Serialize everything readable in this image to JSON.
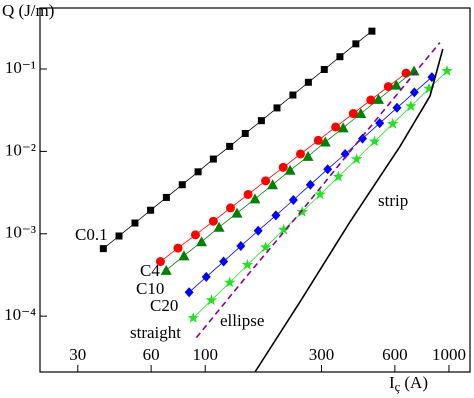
{
  "chart_data": {
    "type": "line",
    "log_x": true,
    "log_y": true,
    "y_label": "Q (J/m)",
    "x_label": {
      "main": "I",
      "sub": "ç",
      "unit": "(A)"
    },
    "xlim": [
      21,
      1220
    ],
    "ylim": [
      2.1e-05,
      0.55
    ],
    "xticks": [
      30,
      60,
      100,
      300,
      600,
      1000
    ],
    "yticks": [
      {
        "value": 0.0001,
        "label": "10⁻⁴"
      },
      {
        "value": 0.001,
        "label": "10⁻³"
      },
      {
        "value": 0.01,
        "label": "10⁻²"
      },
      {
        "value": 0.1,
        "label": "10⁻¹"
      }
    ],
    "series": [
      {
        "name": "C0.1",
        "color": "#000000",
        "marker": "square",
        "line": "solid",
        "x": [
          38.2,
          44.3,
          51.5,
          59.7,
          69.3,
          80.5,
          93.5,
          108,
          126,
          146,
          170,
          197,
          229,
          265,
          308,
          357,
          415,
          483
        ],
        "values": [
          0.00066,
          0.00094,
          0.00135,
          0.00193,
          0.00276,
          0.00394,
          0.00565,
          0.00807,
          0.0115,
          0.0165,
          0.0236,
          0.0337,
          0.0483,
          0.069,
          0.0986,
          0.141,
          0.202,
          0.288
        ]
      },
      {
        "name": "C4",
        "color": "#ff0000",
        "marker": "circle",
        "line": "solid",
        "x": [
          65.5,
          77.3,
          91.2,
          108,
          127,
          150,
          177,
          209,
          246,
          291,
          343,
          405,
          478,
          564,
          667
        ],
        "values": [
          0.00046,
          0.00067,
          0.00097,
          0.00142,
          0.00206,
          0.003,
          0.00439,
          0.0064,
          0.0093,
          0.0136,
          0.0198,
          0.0288,
          0.042,
          0.0612,
          0.0891
        ]
      },
      {
        "name": "C10",
        "color": "#008000",
        "marker": "triangle",
        "line": "solid",
        "x": [
          69.2,
          81.8,
          96.6,
          114,
          135,
          160,
          189,
          223,
          264,
          311,
          368,
          435,
          514,
          608,
          719
        ],
        "values": [
          0.00036,
          0.00054,
          0.0008,
          0.0012,
          0.00178,
          0.00265,
          0.00394,
          0.0059,
          0.0087,
          0.013,
          0.0193,
          0.0288,
          0.0428,
          0.0637,
          0.0946
        ]
      },
      {
        "name": "C20",
        "color": "#0000ff",
        "marker": "diamond",
        "line": "solid",
        "x": [
          85.9,
          101,
          119,
          140,
          165,
          195,
          230,
          270,
          318,
          375,
          442,
          520,
          612,
          721,
          851
        ],
        "values": [
          0.000195,
          0.0003,
          0.00046,
          0.00071,
          0.00109,
          0.00167,
          0.00257,
          0.00394,
          0.00607,
          0.0093,
          0.0143,
          0.022,
          0.0338,
          0.052,
          0.0798
        ]
      },
      {
        "name": "straight",
        "color": "#22e022",
        "marker": "star",
        "line": "solid",
        "x": [
          89.3,
          106,
          126,
          149,
          177,
          210,
          250,
          296,
          352,
          418,
          495,
          588,
          698,
          828,
          982
        ],
        "values": [
          9.5e-05,
          0.000156,
          0.000256,
          0.000419,
          0.000685,
          0.00112,
          0.00184,
          0.003,
          0.00492,
          0.00805,
          0.0132,
          0.0216,
          0.0353,
          0.0578,
          0.0946
        ]
      },
      {
        "name": "ellipse",
        "color": "#8b008b",
        "marker": "none",
        "line": "dashed",
        "x": [
          92,
          150,
          245,
          400,
          600,
          918
        ],
        "values": [
          5.5e-05,
          0.00032,
          0.0018,
          0.0107,
          0.0457,
          0.209
        ]
      },
      {
        "name": "strip",
        "color": "#000000",
        "marker": "none",
        "line": "solid",
        "x": [
          160,
          245,
          393,
          630,
          836,
          944
        ],
        "values": [
          2.1e-05,
          0.00015,
          0.0014,
          0.0115,
          0.047,
          0.175
        ]
      }
    ]
  }
}
